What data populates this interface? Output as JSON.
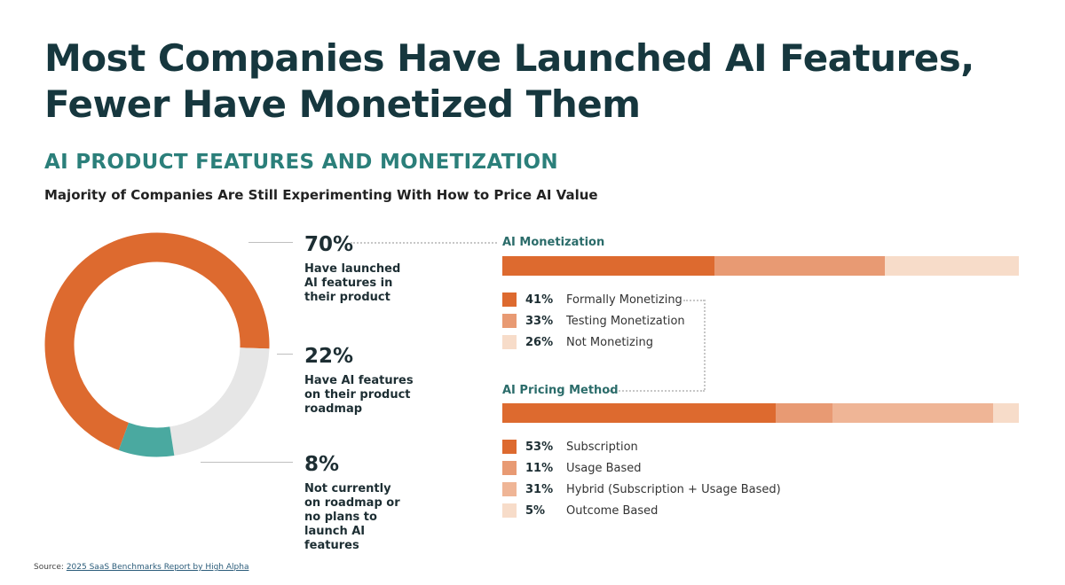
{
  "title_line1": "Most Companies Have Launched AI Features,",
  "title_line2": "Fewer Have Monetized Them",
  "subtitle": "AI PRODUCT FEATURES AND MONETIZATION",
  "tagline": "Majority of Companies Are Still Experimenting With How to Price AI Value",
  "source_prefix": "Source:",
  "source_link": "2025 SaaS Benchmarks Report by High Alpha",
  "colors": {
    "orange": "#dd6a2f",
    "orange_mid": "#e89a73",
    "orange_light": "#f2c9b1",
    "orange_lighter": "#f7dcc9",
    "gray": "#e6e6e6",
    "teal": "#4aa9a0"
  },
  "stats": [
    {
      "pct": "70%",
      "desc": "Have launched AI features in their product"
    },
    {
      "pct": "22%",
      "desc": "Have AI features on their product roadmap"
    },
    {
      "pct": "8%",
      "desc": "Not currently on roadmap or no plans to launch AI features"
    }
  ],
  "monetization": {
    "label": "AI Monetization",
    "items": [
      {
        "pct": "41%",
        "label": "Formally Monetizing"
      },
      {
        "pct": "33%",
        "label": "Testing Monetization"
      },
      {
        "pct": "26%",
        "label": "Not Monetizing"
      }
    ]
  },
  "pricing": {
    "label": "AI Pricing Method",
    "items": [
      {
        "pct": "53%",
        "label": "Subscription"
      },
      {
        "pct": "11%",
        "label": "Usage Based"
      },
      {
        "pct": "31%",
        "label": "Hybrid (Subscription + Usage Based)"
      },
      {
        "pct": "5%",
        "label": "Outcome Based"
      }
    ]
  },
  "chart_data": [
    {
      "type": "pie",
      "categories": [
        "Have launched AI features in their product",
        "Have AI features on their product roadmap",
        "Not currently on roadmap or no plans to launch AI features"
      ],
      "values": [
        70,
        22,
        8
      ],
      "colors": [
        "#dd6a2f",
        "#e6e6e6",
        "#4aa9a0"
      ]
    },
    {
      "type": "bar",
      "title": "AI Monetization",
      "categories": [
        "Formally Monetizing",
        "Testing Monetization",
        "Not Monetizing"
      ],
      "values": [
        41,
        33,
        26
      ],
      "colors": [
        "#dd6a2f",
        "#e89a73",
        "#f7dcc9"
      ]
    },
    {
      "type": "bar",
      "title": "AI Pricing Method",
      "categories": [
        "Subscription",
        "Usage Based",
        "Hybrid (Subscription + Usage Based)",
        "Outcome Based"
      ],
      "values": [
        53,
        11,
        31,
        5
      ],
      "colors": [
        "#dd6a2f",
        "#e89a73",
        "#efb596",
        "#f7dcc9"
      ]
    }
  ]
}
